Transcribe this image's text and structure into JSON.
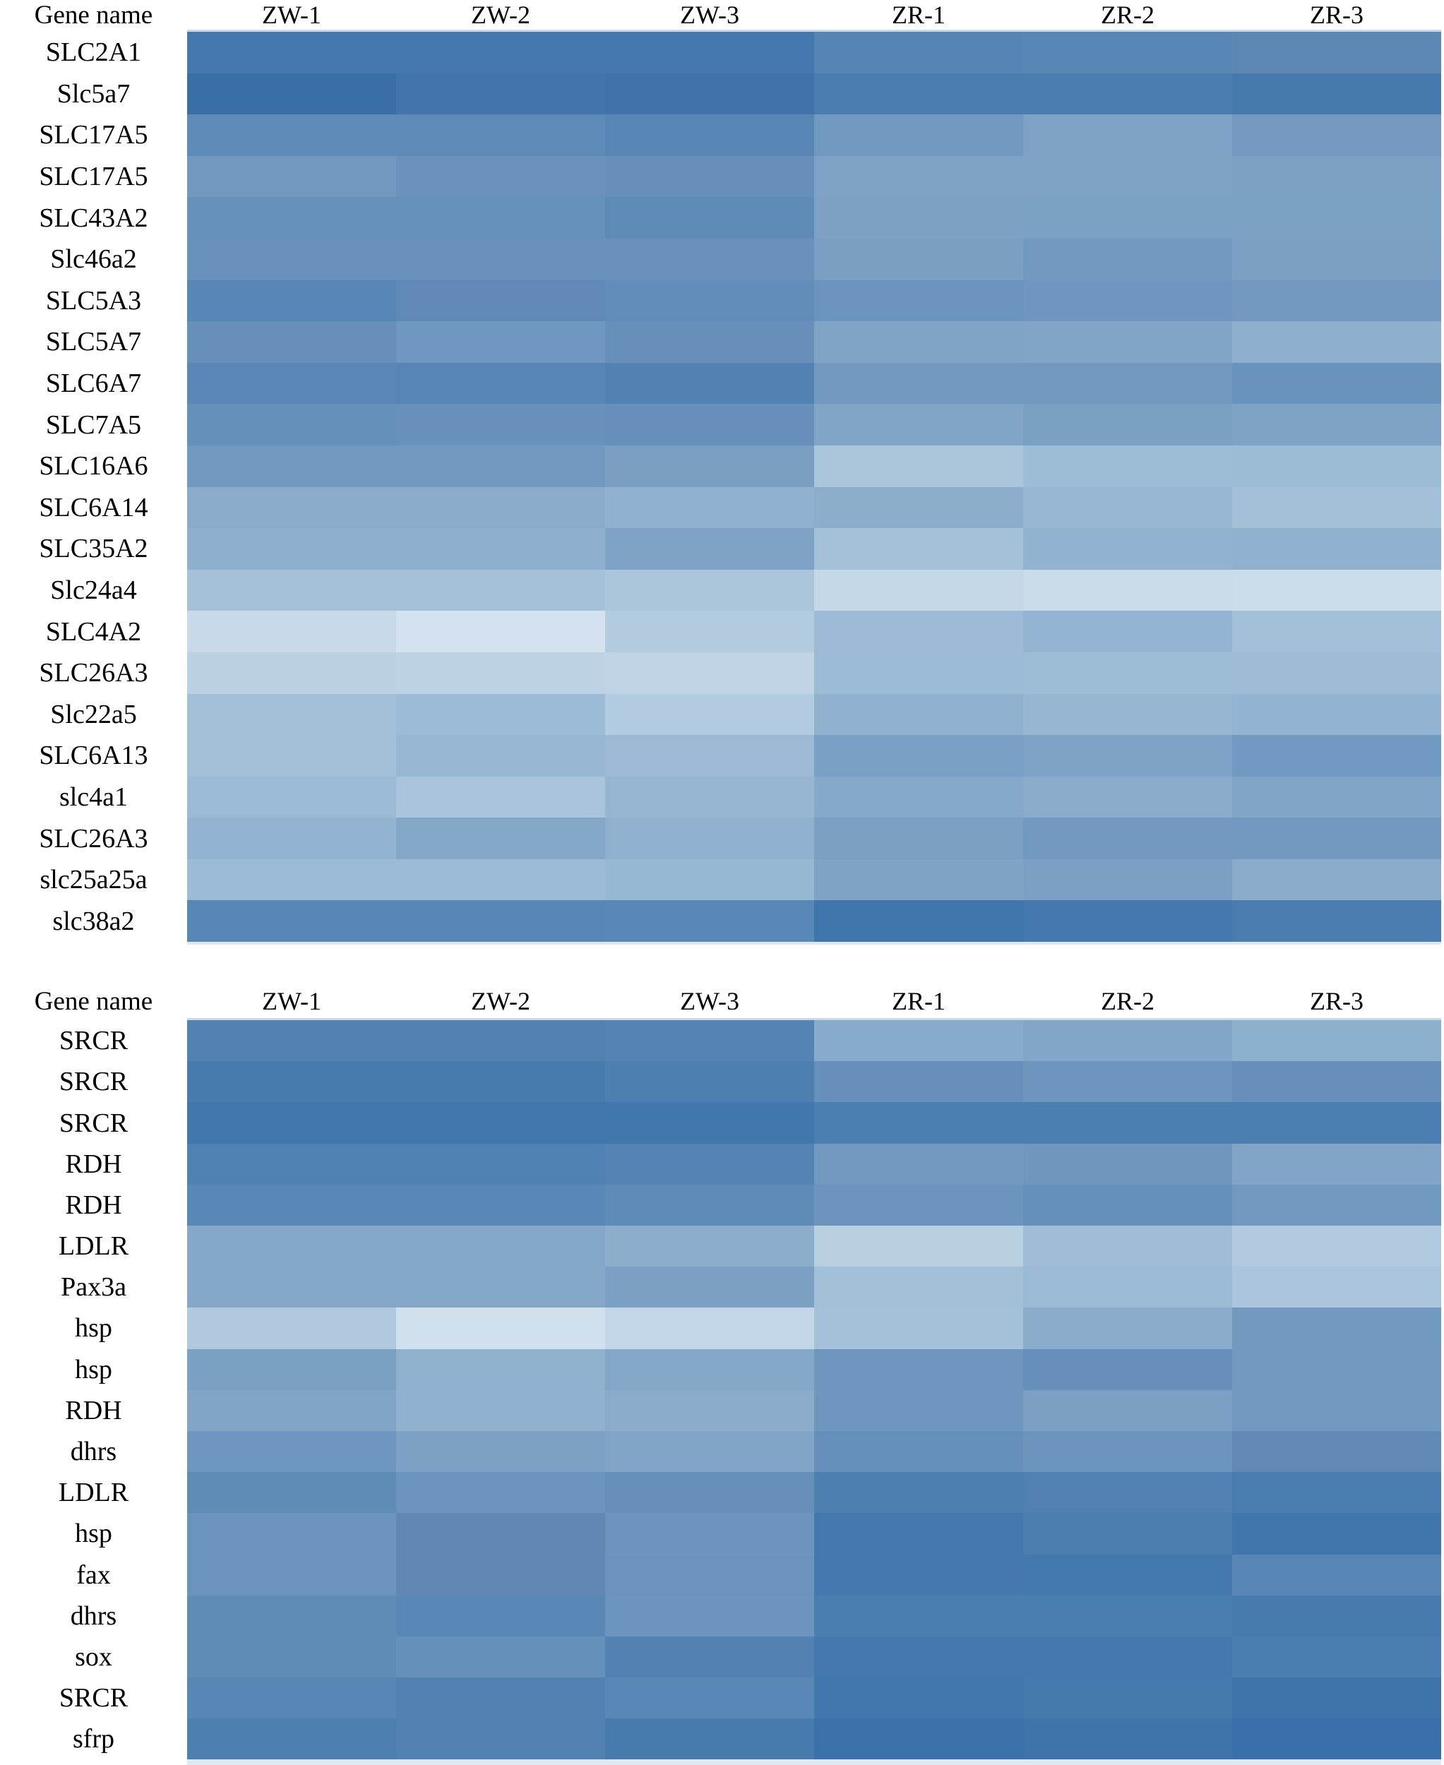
{
  "figure": {
    "description": "Two-panel gene expression heatmap comparing samples ZW-1, ZW-2, ZW-3 and ZR-1, ZR-2, ZR-3"
  },
  "chart_data": [
    {
      "type": "heatmap",
      "title": "",
      "corner_label": "Gene name",
      "legend": "none",
      "grid": "off",
      "palette_hint": {
        "dark": "#3a6ea7",
        "light": "#d3e2ee"
      },
      "columns": [
        "ZW-1",
        "ZW-2",
        "ZW-3",
        "ZR-1",
        "ZR-2",
        "ZR-3"
      ],
      "rows": [
        "SLC2A1",
        "Slc5a7",
        "SLC17A5",
        "SLC17A5",
        "SLC43A2",
        "Slc46a2",
        "SLC5A3",
        "SLC5A7",
        "SLC6A7",
        "SLC7A5",
        "SLC16A6",
        "SLC6A14",
        "SLC35A2",
        "Slc24a4",
        "SLC4A2",
        "SLC26A3",
        "Slc22a5",
        "SLC6A13",
        "slc4a1",
        "SLC26A3",
        "slc25a25a",
        "slc38a2"
      ],
      "cell_colors": [
        [
          "#4478ae",
          "#4478ae",
          "#4478ae",
          "#5684b4",
          "#5785b4",
          "#5d88b6"
        ],
        [
          "#3a6ea7",
          "#4374ab",
          "#4072a9",
          "#4b7cb0",
          "#4b7cb0",
          "#4679ae"
        ],
        [
          "#5e8ab7",
          "#5e8ab7",
          "#5786b4",
          "#7198bf",
          "#7da2c5",
          "#7599c0"
        ],
        [
          "#7298c0",
          "#6a93bc",
          "#6690ba",
          "#7ea2c5",
          "#7ea2c5",
          "#7da1c4"
        ],
        [
          "#6691bb",
          "#6691bb",
          "#5d8ab6",
          "#7da1c4",
          "#7ba1c5",
          "#7ba1c5"
        ],
        [
          "#6892bc",
          "#6892bc",
          "#6892bc",
          "#7a9fc3",
          "#7399c0",
          "#7ba0c4"
        ],
        [
          "#5886b5",
          "#6089b7",
          "#628cb9",
          "#6b94bd",
          "#6e96be",
          "#7399c0"
        ],
        [
          "#6690ba",
          "#7097bf",
          "#6690ba",
          "#80a4c6",
          "#82a5c7",
          "#8fb0cd"
        ],
        [
          "#5a87b5",
          "#5785b4",
          "#5282b2",
          "#7399c0",
          "#7398bf",
          "#6a93bc"
        ],
        [
          "#6590ba",
          "#6791bb",
          "#6690bb",
          "#82a5c7",
          "#7aa0c4",
          "#7fa3c6"
        ],
        [
          "#7299c0",
          "#7299c0",
          "#7b9fc3",
          "#abc5db",
          "#9dbcd6",
          "#9cbbd5"
        ],
        [
          "#8aabca",
          "#8aabca",
          "#90b1cf",
          "#8cadcb",
          "#97b7d3",
          "#a3c0d9"
        ],
        [
          "#8eafcd",
          "#8eafcd",
          "#7fa3c6",
          "#a5c1d9",
          "#92b3d0",
          "#90b1ce"
        ],
        [
          "#a5c1d9",
          "#a5c1d9",
          "#abc5da",
          "#c5d8e8",
          "#c9dbe9",
          "#cbdceb"
        ],
        [
          "#c8daea",
          "#d3e2ee",
          "#b3cbdf",
          "#9dbbd6",
          "#94b5d2",
          "#a3c0d9"
        ],
        [
          "#bad0e3",
          "#bdd2e5",
          "#c0d4e6",
          "#9cbbd6",
          "#9dbcd6",
          "#9ebcd6"
        ],
        [
          "#a2bfd8",
          "#9cbbd6",
          "#b3cbe0",
          "#8fb1ce",
          "#96b6d2",
          "#93b4d0"
        ],
        [
          "#a2bfd8",
          "#97b7d3",
          "#9cbad5",
          "#7ba0c5",
          "#7fa3c6",
          "#7299c1"
        ],
        [
          "#9bbad5",
          "#a9c4db",
          "#95b5d1",
          "#87a9c9",
          "#8aabca",
          "#81a5c7"
        ],
        [
          "#93b4d1",
          "#84a7c8",
          "#8fb1cf",
          "#7ba0c4",
          "#7399c0",
          "#7399c0"
        ],
        [
          "#9cbbd6",
          "#9cbbd6",
          "#97b8d3",
          "#7fa3c5",
          "#7ba0c4",
          "#8aabca"
        ],
        [
          "#5886b5",
          "#5886b5",
          "#5a88b6",
          "#4176ad",
          "#4478ae",
          "#4a7cb0"
        ]
      ]
    },
    {
      "type": "heatmap",
      "title": "",
      "corner_label": "Gene name",
      "legend": "none",
      "grid": "off",
      "palette_hint": {
        "dark": "#3a70a9",
        "light": "#d0e0ed"
      },
      "columns": [
        "ZW-1",
        "ZW-2",
        "ZW-3",
        "ZR-1",
        "ZR-2",
        "ZR-3"
      ],
      "rows": [
        "SRCR",
        "SRCR",
        "SRCR",
        "RDH",
        "RDH",
        "LDLR",
        "Pax3a",
        "hsp",
        "hsp",
        "RDH",
        "dhrs",
        "LDLR",
        "hsp",
        "fax",
        "dhrs",
        "sox",
        "SRCR",
        "sfrp"
      ],
      "cell_colors": [
        [
          "#5282b2",
          "#5282b2",
          "#5484b3",
          "#88aacb",
          "#83a6c8",
          "#8db0cd"
        ],
        [
          "#477bae",
          "#477bae",
          "#4e7fb1",
          "#6690bb",
          "#6d95be",
          "#6690bb"
        ],
        [
          "#4177ad",
          "#4177ad",
          "#4177ad",
          "#4c7fb1",
          "#4c7fb1",
          "#4c7fb1"
        ],
        [
          "#4f81b2",
          "#4f81b2",
          "#5584b4",
          "#7399c0",
          "#7096be",
          "#82a5c7"
        ],
        [
          "#5a88b6",
          "#5a88b6",
          "#5f8bb8",
          "#6c95be",
          "#6490bb",
          "#7299c0"
        ],
        [
          "#85a8c9",
          "#85a8c9",
          "#8cadcb",
          "#b9d0e3",
          "#9fbdd7",
          "#b1cadf"
        ],
        [
          "#85a8c9",
          "#85a8c9",
          "#7ba0c4",
          "#a3c0d9",
          "#9bbad6",
          "#abc5dc"
        ],
        [
          "#b0c9df",
          "#d0e0ed",
          "#c3d6e7",
          "#a5c1d9",
          "#8aabca",
          "#7299c0"
        ],
        [
          "#7aa0c4",
          "#90b1ce",
          "#84a7c8",
          "#6e96be",
          "#6690bb",
          "#7399c0"
        ],
        [
          "#82a5c7",
          "#90b1ce",
          "#8aabca",
          "#6e96be",
          "#7ba0c4",
          "#7399c0"
        ],
        [
          "#6e96be",
          "#7ca1c5",
          "#82a5c7",
          "#6490bb",
          "#6c95bd",
          "#6289b5"
        ],
        [
          "#5f8bb7",
          "#6c95bd",
          "#6690ba",
          "#4d80b1",
          "#5181b2",
          "#497db0"
        ],
        [
          "#6a93bd",
          "#6088b5",
          "#6c95bd",
          "#4478ae",
          "#4c7eb0",
          "#4076ac"
        ],
        [
          "#6a93bd",
          "#6088b5",
          "#6a93bd",
          "#4478ae",
          "#4379ae",
          "#5886b5"
        ],
        [
          "#5f8bb7",
          "#5a88b6",
          "#6c95bd",
          "#4a7db0",
          "#4a7db0",
          "#477bae"
        ],
        [
          "#5f8bb7",
          "#6490ba",
          "#5282b2",
          "#4478ae",
          "#4478ae",
          "#4a7db0"
        ],
        [
          "#5886b5",
          "#5282b2",
          "#5a88b6",
          "#4177ad",
          "#447aae",
          "#3f74ab"
        ],
        [
          "#4d80b1",
          "#5282b2",
          "#477bae",
          "#3c72aa",
          "#3f74ab",
          "#3a70a9"
        ]
      ]
    }
  ]
}
